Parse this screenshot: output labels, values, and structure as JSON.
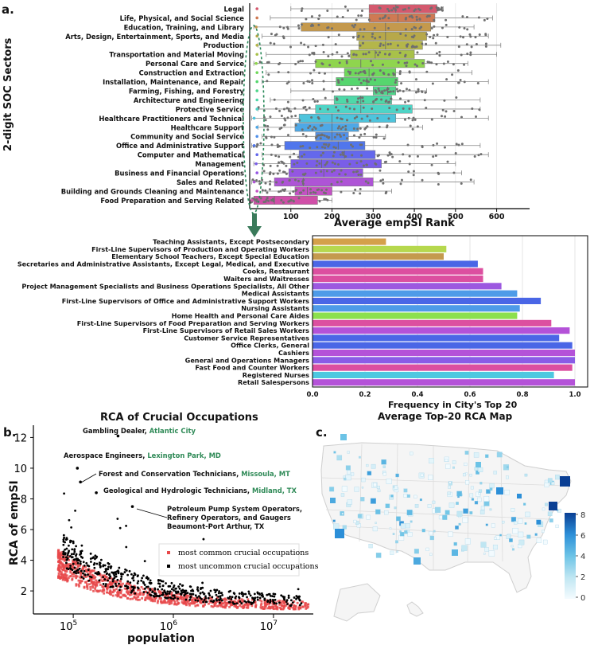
{
  "panel_labels": {
    "a": "a.",
    "b": "b.",
    "c": "c."
  },
  "chart_data": [
    {
      "type": "boxplot",
      "title": "",
      "xlabel": "Average empSI Rank",
      "ylabel": "2-digit SOC Sectors",
      "xlim": [
        0,
        680
      ],
      "xticks": [
        100,
        200,
        300,
        400,
        500,
        600
      ],
      "categories": [
        {
          "name": "Legal",
          "color": "#d4596e",
          "min": 100,
          "q1": 290,
          "median": 355,
          "q3": 455,
          "max": 470
        },
        {
          "name": "Life, Physical, and Social Science",
          "color": "#cf7a53",
          "min": 50,
          "q1": 290,
          "median": 360,
          "q3": 450,
          "max": 590
        },
        {
          "name": "Education, Training, and Library",
          "color": "#c4994d",
          "min": 10,
          "q1": 125,
          "median": 330,
          "q3": 440,
          "max": 545
        },
        {
          "name": "Arts, Design, Entertainment, Sports, and Media",
          "color": "#b7a84a",
          "min": 30,
          "q1": 260,
          "median": 330,
          "q3": 430,
          "max": 580
        },
        {
          "name": "Production",
          "color": "#b4b64a",
          "min": 20,
          "q1": 265,
          "median": 330,
          "q3": 420,
          "max": 610
        },
        {
          "name": "Transportation and Material Moving",
          "color": "#a8c14a",
          "min": 40,
          "q1": 245,
          "median": 305,
          "q3": 400,
          "max": 600
        },
        {
          "name": "Personal Care and Service",
          "color": "#8fd54e",
          "min": 10,
          "q1": 160,
          "median": 270,
          "q3": 425,
          "max": 530
        },
        {
          "name": "Construction and Extraction",
          "color": "#6fd85a",
          "min": 40,
          "q1": 230,
          "median": 290,
          "q3": 355,
          "max": 540
        },
        {
          "name": "Installation, Maintenance, and Repair",
          "color": "#56d66e",
          "min": 30,
          "q1": 210,
          "median": 285,
          "q3": 360,
          "max": 580
        },
        {
          "name": "Farming, Fishing, and Forestry",
          "color": "#4fd68a",
          "min": 100,
          "q1": 300,
          "median": 335,
          "q3": 355,
          "max": 430
        },
        {
          "name": "Architecture and Engineering",
          "color": "#4fd8a8",
          "min": 50,
          "q1": 205,
          "median": 270,
          "q3": 345,
          "max": 560
        },
        {
          "name": "Protective Service",
          "color": "#4fd4c6",
          "min": 20,
          "q1": 160,
          "median": 270,
          "q3": 395,
          "max": 560
        },
        {
          "name": "Healthcare Practitioners and Technical",
          "color": "#4ec4dc",
          "min": 5,
          "q1": 120,
          "median": 200,
          "q3": 355,
          "max": 580
        },
        {
          "name": "Healthcare Support",
          "color": "#4ea8e6",
          "min": 20,
          "q1": 110,
          "median": 200,
          "q3": 265,
          "max": 420
        },
        {
          "name": "Community and Social Service",
          "color": "#5090ea",
          "min": 30,
          "q1": 160,
          "median": 200,
          "q3": 240,
          "max": 330
        },
        {
          "name": "Office and Administrative Support",
          "color": "#5076ec",
          "min": 5,
          "q1": 85,
          "median": 215,
          "q3": 280,
          "max": 560
        },
        {
          "name": "Computer and Mathematical",
          "color": "#6468ec",
          "min": 30,
          "q1": 120,
          "median": 230,
          "q3": 305,
          "max": 580
        },
        {
          "name": "Management",
          "color": "#7a5ee8",
          "min": 10,
          "q1": 100,
          "median": 175,
          "q3": 320,
          "max": 500
        },
        {
          "name": "Business and Financial Operations",
          "color": "#9456e2",
          "min": 30,
          "q1": 95,
          "median": 180,
          "q3": 275,
          "max": 515
        },
        {
          "name": "Sales and Related",
          "color": "#ae54d6",
          "min": 5,
          "q1": 60,
          "median": 130,
          "q3": 300,
          "max": 545
        },
        {
          "name": "Building and Grounds Cleaning and Maintenance",
          "color": "#c452c4",
          "min": 30,
          "q1": 110,
          "median": 140,
          "q3": 200,
          "max": 345
        },
        {
          "name": "Food Preparation and Serving Related",
          "color": "#d04fa8",
          "min": 0,
          "q1": 10,
          "median": 60,
          "q3": 165,
          "max": 200
        }
      ]
    },
    {
      "type": "bar",
      "orientation": "horizontal",
      "title": "Average Top-20 RCA Map",
      "xlabel": "Frequency in City's Top 20",
      "xlim": [
        0,
        1.0
      ],
      "xticks": [
        "0.0",
        "0.2",
        "0.4",
        "0.6",
        "0.8",
        "1.0"
      ],
      "bars": [
        {
          "name": "Teaching Assistants, Except Postsecondary",
          "value": 0.28,
          "color": "#d4a04a"
        },
        {
          "name": "First-Line Supervisors of Production and Operating Workers",
          "value": 0.51,
          "color": "#b6d84e"
        },
        {
          "name": "Elementary School Teachers, Except Special Education",
          "value": 0.5,
          "color": "#c49a4e"
        },
        {
          "name": "Secretaries and Administrative Assistants, Except Legal, Medical, and Executive",
          "value": 0.63,
          "color": "#4a66e6"
        },
        {
          "name": "Cooks, Restaurant",
          "value": 0.65,
          "color": "#dc4fa0"
        },
        {
          "name": "Waiters and Waitresses",
          "value": 0.65,
          "color": "#dc4fa0"
        },
        {
          "name": "Project Management Specialists and Business Operations Specialists, All Other",
          "value": 0.72,
          "color": "#9c58e0"
        },
        {
          "name": "Medical Assistants",
          "value": 0.78,
          "color": "#4e9be8"
        },
        {
          "name": "First-Line Supervisors of Office and Administrative Support Workers",
          "value": 0.87,
          "color": "#4a66e6"
        },
        {
          "name": "Nursing Assistants",
          "value": 0.79,
          "color": "#4e9be8"
        },
        {
          "name": "Home Health and Personal Care Aides",
          "value": 0.78,
          "color": "#8ce04e"
        },
        {
          "name": "First-Line Supervisors of Food Preparation and Serving Workers",
          "value": 0.91,
          "color": "#dc4fa0"
        },
        {
          "name": "First-Line Supervisors of Retail Sales Workers",
          "value": 0.98,
          "color": "#b452d8"
        },
        {
          "name": "Customer Service Representatives",
          "value": 0.94,
          "color": "#4a66e6"
        },
        {
          "name": "Office Clerks, General",
          "value": 0.99,
          "color": "#4a66e6"
        },
        {
          "name": "Cashiers",
          "value": 1.0,
          "color": "#b452d8"
        },
        {
          "name": "General and Operations Managers",
          "value": 1.0,
          "color": "#8a5ce6"
        },
        {
          "name": "Fast Food and Counter Workers",
          "value": 0.99,
          "color": "#dc4fa0"
        },
        {
          "name": "Registered Nurses",
          "value": 0.92,
          "color": "#4ec8e0"
        },
        {
          "name": "Retail Salespersons",
          "value": 1.0,
          "color": "#b452d8"
        }
      ]
    },
    {
      "type": "scatter",
      "title": "RCA of Crucial Occupations",
      "xlabel": "population",
      "ylabel": "RCA of empSI",
      "xscale": "log",
      "xlim": [
        40000,
        25000000
      ],
      "ylim": [
        0.5,
        12.8
      ],
      "xticks": [
        {
          "value": 100000,
          "base": "10",
          "exp": "5"
        },
        {
          "value": 1000000,
          "base": "10",
          "exp": "6"
        },
        {
          "value": 10000000,
          "base": "10",
          "exp": "7"
        }
      ],
      "yticks": [
        "2",
        "4",
        "6",
        "8",
        "10",
        "12"
      ],
      "legend": {
        "position": "middle-right",
        "common": "most common crucial occupations",
        "uncommon": "most uncommon crucial occupations"
      },
      "common_color": "#e8484a",
      "uncommon_color": "#000000",
      "annotations": [
        {
          "occupation": "Gambling Dealer,",
          "place": "Atlantic City",
          "x": 280000,
          "y": 12.1
        },
        {
          "occupation": "Aerospace Engineers,",
          "place": "Lexington Park, MD",
          "x": 110000,
          "y": 10.0
        },
        {
          "occupation": "Forest and Conservation Technicians,",
          "place": "Missoula, MT",
          "x": 118000,
          "y": 9.1
        },
        {
          "occupation": "Geological and Hydrologic Technicians,",
          "place": "Midland, TX",
          "x": 170000,
          "y": 8.4
        },
        {
          "occupation": "Petroleum Pump System Operators, Refinery Operators, and Gaugers",
          "place": "Beaumont-Port Arthur, TX",
          "x": 390000,
          "y": 7.5
        }
      ],
      "place_color": "#2f8a57"
    },
    {
      "type": "map",
      "title": "",
      "colorbar": {
        "min": 0,
        "max": 8,
        "ticks": [
          "0",
          "2",
          "4",
          "6",
          "8"
        ],
        "colors": [
          "#f4fbfe",
          "#bfe6f2",
          "#6cc3e6",
          "#2c8fd8",
          "#0a3f94"
        ]
      }
    }
  ]
}
